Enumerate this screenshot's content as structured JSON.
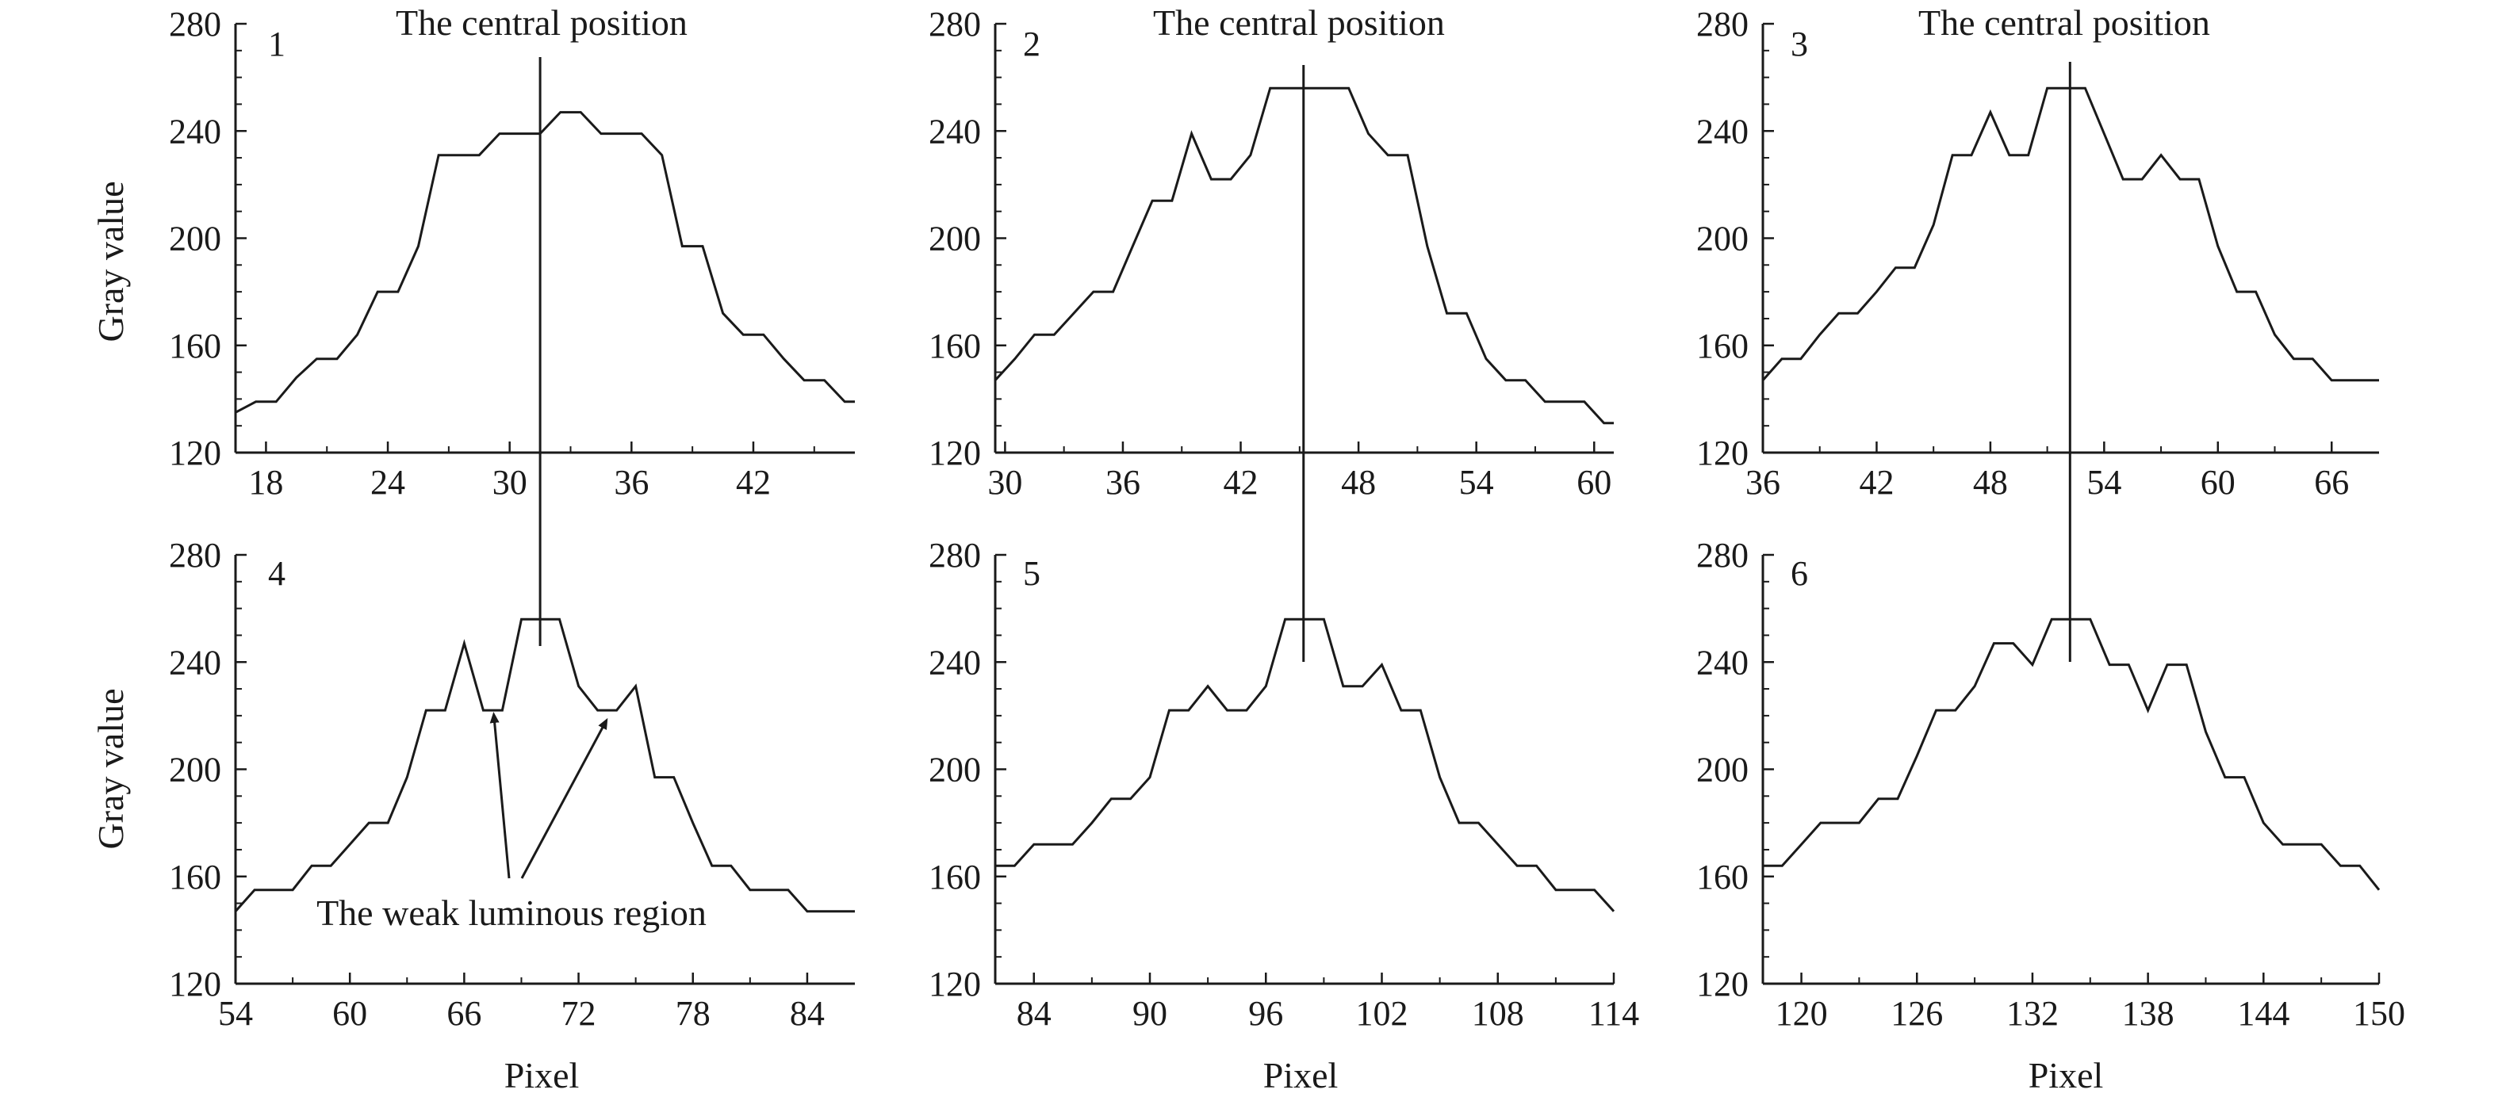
{
  "figure": {
    "annotations": {
      "central_position": "The central position",
      "weak_region": "The weak luminous region"
    },
    "axis_labels": {
      "x": "Pixel",
      "y": "Gray value"
    },
    "colors": {
      "line": "#1a1a1a",
      "background": "#ffffff"
    }
  },
  "chart_data": [
    {
      "type": "line",
      "panel": "1",
      "xlabel": "",
      "ylabel": "Gray value",
      "xlim": [
        16.5,
        47
      ],
      "ylim": [
        120,
        280
      ],
      "xticks": [
        18,
        24,
        30,
        36,
        42
      ],
      "yticks": [
        120,
        160,
        200,
        240,
        280
      ],
      "center_x": 31.5,
      "title": "The central position",
      "x": [
        16.5,
        17.5,
        18.5,
        19.5,
        20.5,
        21.5,
        22.5,
        23.5,
        24.5,
        25.5,
        26.5,
        27.5,
        28.5,
        29.5,
        30.5,
        31.5,
        32.5,
        33.5,
        34.5,
        35.5,
        36.5,
        37.5,
        38.5,
        39.5,
        40.5,
        41.5,
        42.5,
        43.5,
        44.5,
        45.5,
        46.5,
        47
      ],
      "values": [
        135,
        139,
        139,
        148,
        155,
        155,
        164,
        180,
        180,
        197,
        231,
        231,
        231,
        239,
        239,
        239,
        247,
        247,
        239,
        239,
        239,
        231,
        197,
        197,
        172,
        164,
        164,
        155,
        147,
        147,
        139,
        139
      ]
    },
    {
      "type": "line",
      "panel": "2",
      "xlabel": "",
      "ylabel": "",
      "xlim": [
        29.5,
        61
      ],
      "ylim": [
        120,
        280
      ],
      "xticks": [
        30,
        36,
        42,
        48,
        54,
        60
      ],
      "yticks": [
        120,
        160,
        200,
        240,
        280
      ],
      "center_x": 45.2,
      "title": "The central position",
      "x": [
        29.5,
        30.5,
        31.5,
        32.5,
        33.5,
        34.5,
        35.5,
        36.5,
        37.5,
        38.5,
        39.5,
        40.5,
        41.5,
        42.5,
        43.5,
        44.5,
        45.5,
        46.5,
        47.5,
        48.5,
        49.5,
        50.5,
        51.5,
        52.5,
        53.5,
        54.5,
        55.5,
        56.5,
        57.5,
        58.5,
        59.5,
        60.5,
        61
      ],
      "values": [
        147,
        155,
        164,
        164,
        172,
        180,
        180,
        197,
        214,
        214,
        239,
        222,
        222,
        231,
        256,
        256,
        256,
        256,
        256,
        239,
        231,
        231,
        197,
        172,
        172,
        155,
        147,
        147,
        139,
        139,
        139,
        131,
        131
      ]
    },
    {
      "type": "line",
      "panel": "3",
      "xlabel": "",
      "ylabel": "",
      "xlim": [
        36,
        68.5
      ],
      "ylim": [
        120,
        280
      ],
      "xticks": [
        36,
        42,
        48,
        54,
        60,
        66
      ],
      "yticks": [
        120,
        160,
        200,
        240,
        280
      ],
      "center_x": 52.2,
      "title": "The central position",
      "x": [
        36,
        37,
        38,
        39,
        40,
        41,
        42,
        43,
        44,
        45,
        46,
        47,
        48,
        49,
        50,
        51,
        52,
        53,
        54,
        55,
        56,
        57,
        58,
        59,
        60,
        61,
        62,
        63,
        64,
        65,
        66,
        67,
        68,
        68.5
      ],
      "values": [
        147,
        155,
        155,
        164,
        172,
        172,
        180,
        189,
        189,
        205,
        231,
        231,
        247,
        231,
        231,
        256,
        256,
        256,
        239,
        222,
        222,
        231,
        222,
        222,
        197,
        180,
        180,
        164,
        155,
        155,
        147,
        147,
        147,
        147
      ]
    },
    {
      "type": "line",
      "panel": "4",
      "xlabel": "Pixel",
      "ylabel": "Gray value",
      "xlim": [
        54,
        86.5
      ],
      "ylim": [
        120,
        280
      ],
      "xticks": [
        54,
        60,
        66,
        72,
        78,
        84
      ],
      "yticks": [
        120,
        160,
        200,
        240,
        280
      ],
      "center_x": 70,
      "title": "",
      "x": [
        54,
        55,
        56,
        57,
        58,
        59,
        60,
        61,
        62,
        63,
        64,
        65,
        66,
        67,
        68,
        69,
        70,
        71,
        72,
        73,
        74,
        75,
        76,
        77,
        78,
        79,
        80,
        81,
        82,
        83,
        84,
        85,
        86,
        86.5
      ],
      "values": [
        147,
        155,
        155,
        155,
        164,
        164,
        172,
        180,
        180,
        197,
        222,
        222,
        247,
        222,
        222,
        256,
        256,
        256,
        231,
        222,
        222,
        231,
        197,
        197,
        180,
        164,
        164,
        155,
        155,
        155,
        147,
        147,
        147,
        147
      ]
    },
    {
      "type": "line",
      "panel": "5",
      "xlabel": "Pixel",
      "ylabel": "",
      "xlim": [
        82,
        114
      ],
      "ylim": [
        120,
        280
      ],
      "xticks": [
        84,
        90,
        96,
        102,
        108,
        114
      ],
      "yticks": [
        120,
        160,
        200,
        240,
        280
      ],
      "center_x": 98.1,
      "title": "",
      "x": [
        82,
        83,
        84,
        85,
        86,
        87,
        88,
        89,
        90,
        91,
        92,
        93,
        94,
        95,
        96,
        97,
        98,
        99,
        100,
        101,
        102,
        103,
        104,
        105,
        106,
        107,
        108,
        109,
        110,
        111,
        112,
        113,
        114
      ],
      "values": [
        164,
        164,
        172,
        172,
        172,
        180,
        189,
        189,
        197,
        222,
        222,
        231,
        222,
        222,
        231,
        256,
        256,
        256,
        231,
        231,
        239,
        222,
        222,
        197,
        180,
        180,
        172,
        164,
        164,
        155,
        155,
        155,
        147
      ]
    },
    {
      "type": "line",
      "panel": "6",
      "xlabel": "Pixel",
      "ylabel": "",
      "xlim": [
        118,
        150
      ],
      "ylim": [
        120,
        280
      ],
      "xticks": [
        120,
        126,
        132,
        138,
        144,
        150
      ],
      "yticks": [
        120,
        160,
        200,
        240,
        280
      ],
      "center_x": 134.2,
      "title": "",
      "x": [
        118,
        119,
        120,
        121,
        122,
        123,
        124,
        125,
        126,
        127,
        128,
        129,
        130,
        131,
        132,
        133,
        134,
        135,
        136,
        137,
        138,
        139,
        140,
        141,
        142,
        143,
        144,
        145,
        146,
        147,
        148,
        149,
        150
      ],
      "values": [
        164,
        164,
        172,
        180,
        180,
        180,
        189,
        189,
        205,
        222,
        222,
        231,
        247,
        247,
        239,
        256,
        256,
        256,
        239,
        239,
        222,
        239,
        239,
        214,
        197,
        197,
        180,
        172,
        172,
        172,
        164,
        164,
        155
      ]
    }
  ]
}
